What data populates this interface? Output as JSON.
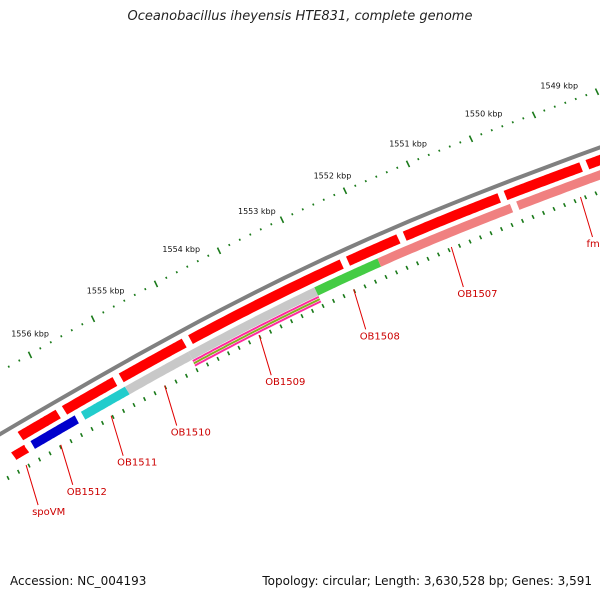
{
  "title": "Oceanobacillus iheyensis HTE831, complete genome",
  "accession": "Accession: NC_004193",
  "summary": "Topology: circular; Length: 3,630,528 bp; Genes: 3,591",
  "colors": {
    "backbone": "#808080",
    "forward_cds": "#ff0000",
    "scale_ticks": "#1a7a1a",
    "label": "#cc0000"
  },
  "kbp_scale": {
    "unit": "kbp",
    "labels": [
      "1549 kbp",
      "1550 kbp",
      "1551 kbp",
      "1552 kbp",
      "1553 kbp",
      "1554 kbp",
      "1555 kbp",
      "1556 kbp"
    ]
  },
  "genes": [
    {
      "label": "fmt",
      "color": "#f08080"
    },
    {
      "label": "OB1507",
      "color": "#f08080"
    },
    {
      "label": "OB1508",
      "color": "#44cc44"
    },
    {
      "label": "OB1509",
      "color": "#c8c8c8"
    },
    {
      "label": "OB1510",
      "color": "#c8c8c8"
    },
    {
      "label": "OB1511",
      "color": "#22cccc"
    },
    {
      "label": "OB1512",
      "color": "#0000cc"
    },
    {
      "label": "spoVM",
      "color": "#ff0000"
    }
  ],
  "extra_lane_colors": [
    "#ff2a9d",
    "#88aa22",
    "#ff2a9d"
  ]
}
